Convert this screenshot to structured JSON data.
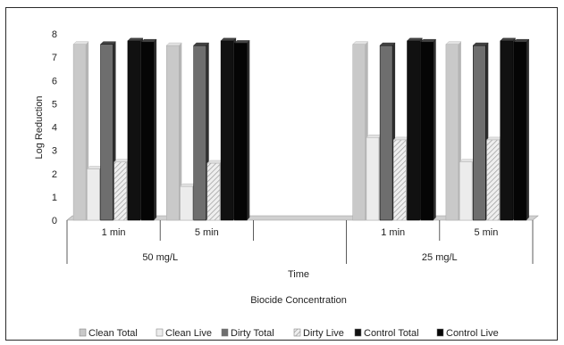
{
  "chart_data": {
    "type": "bar",
    "ylabel": "Log Reduction",
    "xlabel": "Time",
    "outer_label": "Biocide Concentration",
    "ylim": [
      0,
      8
    ],
    "yticks": [
      "0",
      "1",
      "2",
      "3",
      "4",
      "5",
      "6",
      "7",
      "8"
    ],
    "grid": false,
    "legend_position": "bottom",
    "groups": [
      {
        "concentration": "50 mg/L",
        "times": [
          {
            "label": "1 min",
            "values": [
              7.55,
              2.2,
              7.55,
              2.5,
              7.7,
              7.65
            ]
          },
          {
            "label": "5 min",
            "values": [
              7.5,
              1.45,
              7.5,
              2.45,
              7.7,
              7.6
            ]
          }
        ]
      },
      {
        "concentration": "25 mg/L",
        "times": [
          {
            "label": "1 min",
            "values": [
              7.55,
              3.55,
              7.5,
              3.45,
              7.7,
              7.65
            ]
          },
          {
            "label": "5 min",
            "values": [
              7.55,
              2.5,
              7.5,
              3.45,
              7.7,
              7.65
            ]
          }
        ]
      }
    ],
    "series": [
      {
        "name": "Clean Total",
        "color": "#c9c9c9"
      },
      {
        "name": "Clean Live",
        "color": "#ececec"
      },
      {
        "name": "Dirty Total",
        "color": "#6e6e6e"
      },
      {
        "name": "Dirty Live",
        "color": "#d6d6d6",
        "pattern": "diagonal-hatch"
      },
      {
        "name": "Control Total",
        "color": "#111111"
      },
      {
        "name": "Control Live",
        "color": "#050505"
      }
    ]
  }
}
